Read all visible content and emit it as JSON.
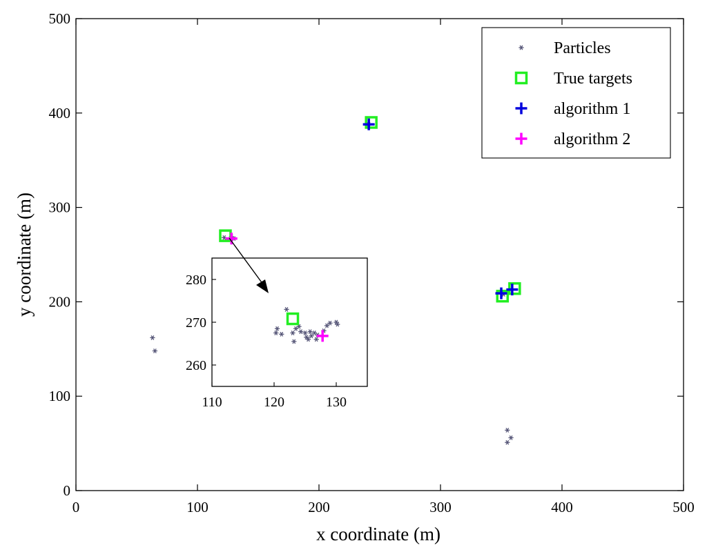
{
  "chart_data": {
    "type": "scatter",
    "title": "",
    "xlabel": "x coordinate (m)",
    "ylabel": "y  coordinate (m)",
    "xlim": [
      0,
      500
    ],
    "ylim": [
      0,
      500
    ],
    "xticks": [
      "0",
      "100",
      "200",
      "300",
      "400",
      "500"
    ],
    "yticks": [
      "0",
      "100",
      "200",
      "300",
      "400",
      "500"
    ],
    "grid": false,
    "legend_position": "top-right",
    "series": [
      {
        "name": "Particles",
        "color": "#555577",
        "marker": "asterisk",
        "points": [
          [
            63,
            162
          ],
          [
            65,
            148
          ],
          [
            355,
            64
          ],
          [
            358,
            56
          ],
          [
            355,
            51
          ],
          [
            241,
            388
          ],
          [
            122,
            268
          ],
          [
            126,
            266
          ],
          [
            128,
            269
          ],
          [
            130,
            267
          ],
          [
            352,
            208
          ],
          [
            358,
            213
          ]
        ]
      },
      {
        "name": "True targets",
        "color": "#22ee22",
        "marker": "square",
        "points": [
          [
            123,
            270
          ],
          [
            243,
            390
          ],
          [
            351,
            206
          ],
          [
            361,
            214
          ]
        ]
      },
      {
        "name": "algorithm 1",
        "color": "#0000dd",
        "marker": "plus",
        "points": [
          [
            241,
            388
          ],
          [
            350,
            209
          ],
          [
            359,
            213
          ]
        ]
      },
      {
        "name": "algorithm 2",
        "color": "#ff00ff",
        "marker": "plus",
        "points": [
          [
            128,
            267
          ]
        ]
      }
    ],
    "inset": {
      "xlim": [
        110,
        135
      ],
      "ylim": [
        255,
        285
      ],
      "xticks": [
        "110",
        "120",
        "130"
      ],
      "yticks": [
        "260",
        "270",
        "280"
      ],
      "particles": [
        [
          122.0,
          273.0
        ],
        [
          120.5,
          268.5
        ],
        [
          120.3,
          267.5
        ],
        [
          121.2,
          267.2
        ],
        [
          123.0,
          267.5
        ],
        [
          123.5,
          268.5
        ],
        [
          124.0,
          269.0
        ],
        [
          124.3,
          267.8
        ],
        [
          123.2,
          265.5
        ],
        [
          125.0,
          267.5
        ],
        [
          125.2,
          266.5
        ],
        [
          125.8,
          267.8
        ],
        [
          126.0,
          266.8
        ],
        [
          126.5,
          267.5
        ],
        [
          127.0,
          267.0
        ],
        [
          128.0,
          268.0
        ],
        [
          128.5,
          269.2
        ],
        [
          129.0,
          269.8
        ],
        [
          130.0,
          270.0
        ],
        [
          130.2,
          269.5
        ],
        [
          126.8,
          266.0
        ],
        [
          125.5,
          266.0
        ]
      ],
      "true_target": [
        123,
        270.8
      ],
      "algorithm2": [
        127.8,
        266.8
      ]
    }
  }
}
